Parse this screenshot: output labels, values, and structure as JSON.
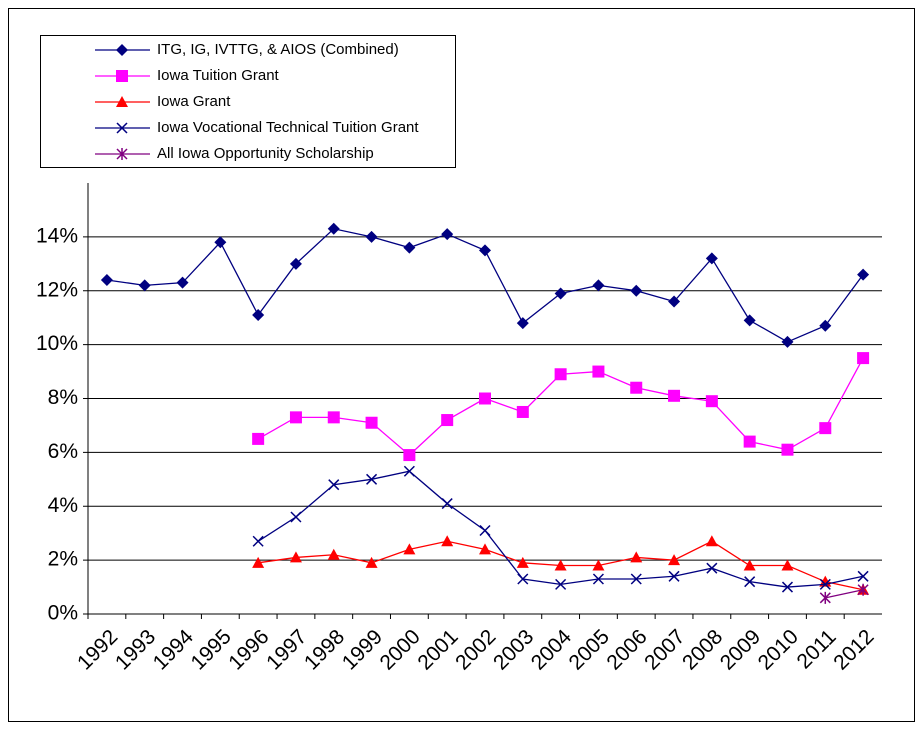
{
  "chart_data": {
    "type": "line",
    "categories": [
      "1992",
      "1993",
      "1994",
      "1995",
      "1996",
      "1997",
      "1998",
      "1999",
      "2000",
      "2001",
      "2002",
      "2003",
      "2004",
      "2005",
      "2006",
      "2007",
      "2008",
      "2009",
      "2010",
      "2011",
      "2012"
    ],
    "series": [
      {
        "name": "ITG, IG, IVTTG, & AIOS (Combined)",
        "color": "#000080",
        "marker": "diamond",
        "values": [
          12.4,
          12.2,
          12.3,
          13.8,
          11.1,
          13.0,
          14.3,
          14.0,
          13.6,
          14.1,
          13.5,
          10.8,
          11.9,
          12.2,
          12.0,
          11.6,
          13.2,
          10.9,
          10.1,
          10.7,
          12.6
        ]
      },
      {
        "name": "Iowa Tuition Grant",
        "color": "#ff00ff",
        "marker": "square",
        "values": [
          null,
          null,
          null,
          null,
          6.5,
          7.3,
          7.3,
          7.1,
          5.9,
          7.2,
          8.0,
          7.5,
          8.9,
          9.0,
          8.4,
          8.1,
          7.9,
          6.4,
          6.1,
          6.9,
          9.5
        ]
      },
      {
        "name": "Iowa Grant",
        "color": "#ff0000",
        "marker": "triangle",
        "values": [
          null,
          null,
          null,
          null,
          1.9,
          2.1,
          2.2,
          1.9,
          2.4,
          2.7,
          2.4,
          1.9,
          1.8,
          1.8,
          2.1,
          2.0,
          2.7,
          1.8,
          1.8,
          1.2,
          0.9
        ]
      },
      {
        "name": "Iowa Vocational Technical Tuition Grant",
        "color": "#000080",
        "marker": "x",
        "values": [
          null,
          null,
          null,
          null,
          2.7,
          3.6,
          4.8,
          5.0,
          5.3,
          4.1,
          3.1,
          1.3,
          1.1,
          1.3,
          1.3,
          1.4,
          1.7,
          1.2,
          1.0,
          1.1,
          1.4
        ]
      },
      {
        "name": "All Iowa Opportunity Scholarship",
        "color": "#800080",
        "marker": "asterisk",
        "values": [
          null,
          null,
          null,
          null,
          null,
          null,
          null,
          null,
          null,
          null,
          null,
          null,
          null,
          null,
          null,
          null,
          null,
          null,
          null,
          0.6,
          0.9
        ]
      }
    ],
    "ylim": [
      0,
      16
    ],
    "yticks": [
      {
        "value": 0,
        "label": "0%"
      },
      {
        "value": 2,
        "label": "2%"
      },
      {
        "value": 4,
        "label": "4%"
      },
      {
        "value": 6,
        "label": "6%"
      },
      {
        "value": 8,
        "label": "8%"
      },
      {
        "value": 10,
        "label": "10%"
      },
      {
        "value": 12,
        "label": "12%"
      },
      {
        "value": 14,
        "label": "14%"
      }
    ],
    "grid": true,
    "legend": "top-left"
  }
}
